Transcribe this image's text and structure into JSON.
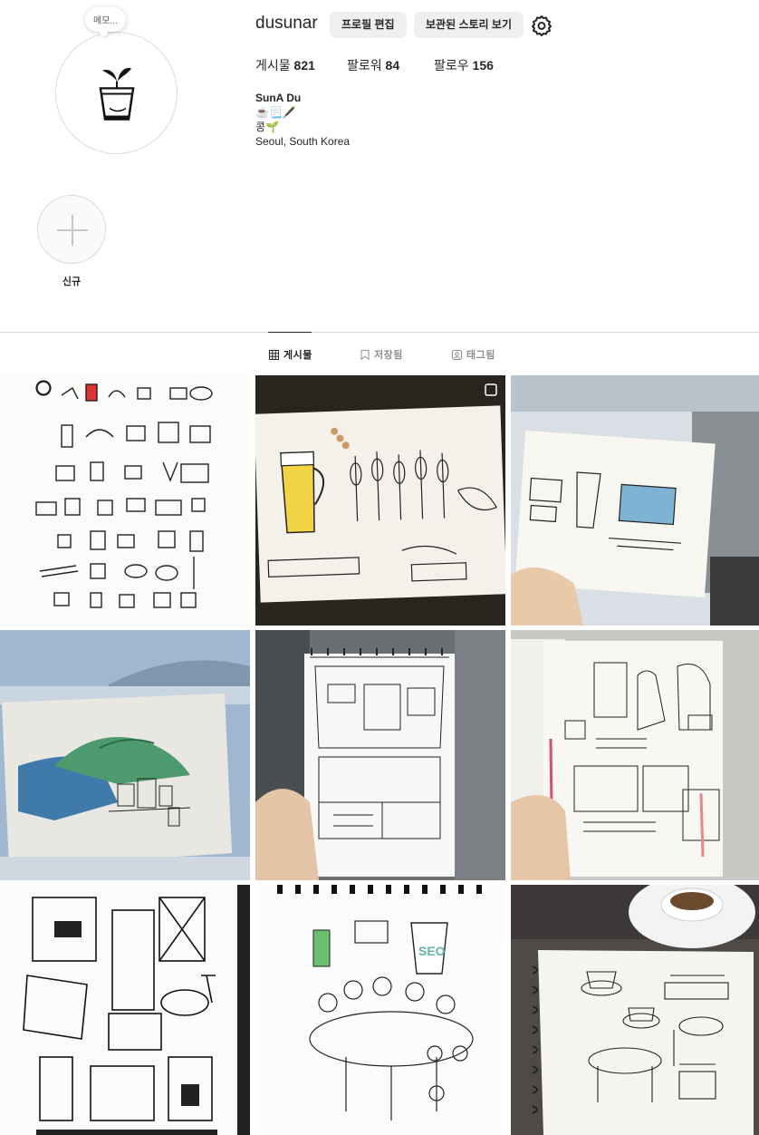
{
  "profile": {
    "username": "dusunar",
    "note": "메모...",
    "edit_button": "프로필 편집",
    "archive_button": "보관된 스토리 보기",
    "stats": {
      "posts_label": "게시물",
      "posts_value": "821",
      "followers_label": "팔로워",
      "followers_value": "84",
      "following_label": "팔로우",
      "following_value": "156"
    },
    "bio": {
      "name": "SunA Du",
      "line1": "☕️📃🖋️",
      "line2": "콩🌱",
      "location": "Seoul, South Korea"
    }
  },
  "highlights": {
    "new_label": "신규"
  },
  "tabs": {
    "posts": "게시물",
    "saved": "저장됨",
    "tagged": "태그됨"
  },
  "tiles": [
    {
      "name": "post-food-doodles"
    },
    {
      "name": "post-beer-yakitori-sketch"
    },
    {
      "name": "post-starbucks-sketch"
    },
    {
      "name": "post-watercolor-island"
    },
    {
      "name": "post-bus-sketch"
    },
    {
      "name": "post-ticket-sketch"
    },
    {
      "name": "post-terra-comic"
    },
    {
      "name": "post-cafe-friends"
    },
    {
      "name": "post-coffee-notebook"
    }
  ],
  "colors": {
    "accent_text": "#262626",
    "muted_text": "#8e8e8e",
    "button_bg": "#efefef",
    "border": "#dbdbdb"
  }
}
